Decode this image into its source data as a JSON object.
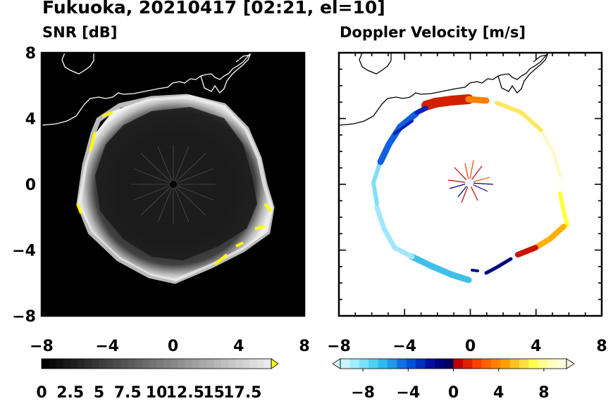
{
  "title": "Fukuoka, 20210417 [02:21, el=10]",
  "panels": [
    {
      "title": "SNR [dB]"
    },
    {
      "title": "Doppler Velocity [m/s]"
    }
  ],
  "chart_data": [
    {
      "type": "heatmap",
      "title": "SNR [dB]",
      "xlim": [
        -8,
        8
      ],
      "ylim": [
        -8,
        8
      ],
      "xticks": [
        "−8",
        "−4",
        "0",
        "4",
        "8"
      ],
      "yticks": [
        "8",
        "4",
        "0",
        "−4",
        "−8"
      ],
      "colorbar": {
        "min": 0,
        "max": 20,
        "extend": "max",
        "tick_values": [
          0,
          2.5,
          5,
          7.5,
          10,
          12.5,
          15,
          17.5
        ],
        "tick_labels": [
          "0",
          "2.5",
          "5",
          "7.5",
          "10",
          "12.5",
          "15",
          "17.5"
        ],
        "colors": [
          "#000000",
          "#ffffff",
          "#ffff00"
        ]
      },
      "ring_radius_approx": 5.3,
      "background": "#000000"
    },
    {
      "type": "heatmap",
      "title": "Doppler Velocity [m/s]",
      "xlim": [
        -8,
        8
      ],
      "ylim": [
        -8,
        8
      ],
      "xticks": [
        "−8",
        "−4",
        "0",
        "4",
        "8"
      ],
      "yticks": [],
      "colorbar": {
        "min": -10,
        "max": 10,
        "extend": "both",
        "tick_values": [
          -8,
          -4,
          0,
          4,
          8
        ],
        "tick_labels": [
          "−8",
          "−4",
          "0",
          "4",
          "8"
        ],
        "colors": [
          "#d8f8ff",
          "#3ad0f0",
          "#0040e0",
          "#000060",
          "#c00000",
          "#ff7000",
          "#ffff30",
          "#ffffe0"
        ]
      },
      "ring_radius_approx": 5.3,
      "background": "#ffffff"
    }
  ]
}
